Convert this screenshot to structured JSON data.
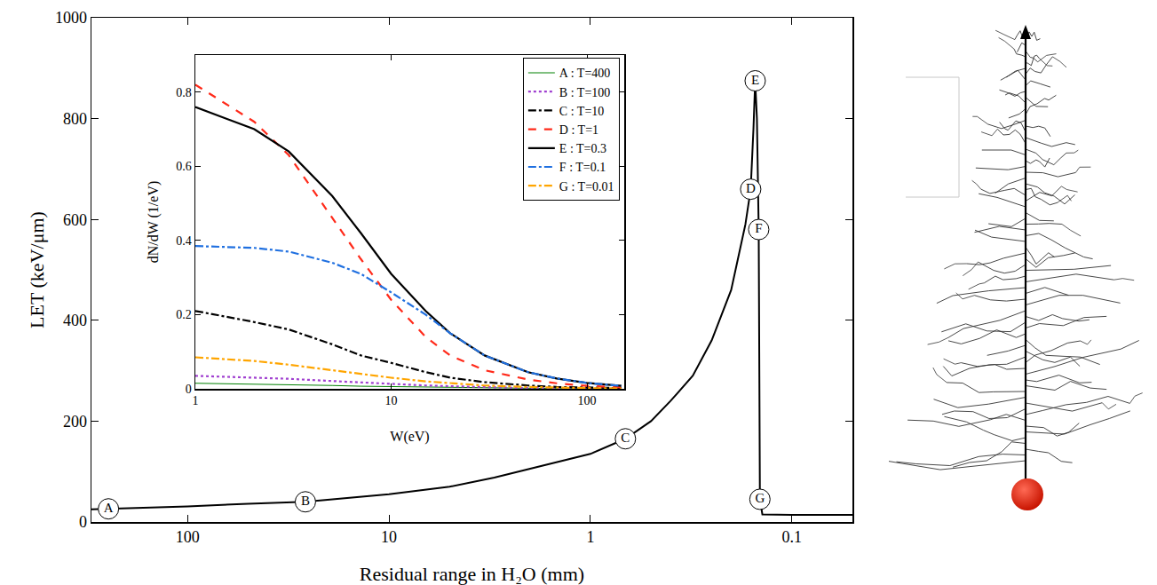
{
  "chart_data": [
    {
      "type": "line",
      "xlabel": "Residual range in H₂O (mm)",
      "ylabel": "LET (keV/μm)",
      "log": "x",
      "grid": false,
      "xlim": [
        300,
        0.05
      ],
      "xticks": [
        100,
        10,
        1,
        0.1
      ],
      "ylim": [
        0,
        1000
      ],
      "yticks": [
        0,
        200,
        400,
        600,
        800,
        1000
      ],
      "x": [
        300,
        247,
        150,
        100,
        50,
        26,
        10,
        5,
        3,
        2,
        1,
        0.67,
        0.5,
        0.4,
        0.31,
        0.25,
        0.2,
        0.17,
        0.16,
        0.155,
        0.152,
        0.149,
        0.146,
        0.144,
        0.14,
        0.1,
        0.05
      ],
      "series": [
        {
          "color": "#000000",
          "line_style": "solid",
          "values": [
            25,
            26,
            29,
            31,
            36,
            40,
            55,
            70,
            88,
            105,
            135,
            165,
            200,
            240,
            290,
            360,
            460,
            590,
            660,
            780,
            875,
            800,
            580,
            45,
            15,
            14,
            14
          ]
        }
      ],
      "annotations": [
        {
          "text": "A",
          "x": 247,
          "y": 26
        },
        {
          "text": "B",
          "x": 26,
          "y": 40
        },
        {
          "text": "C",
          "x": 0.67,
          "y": 165
        },
        {
          "text": "D",
          "x": 0.16,
          "y": 660
        },
        {
          "text": "E",
          "x": 0.152,
          "y": 875
        },
        {
          "text": "F",
          "x": 0.146,
          "y": 580
        },
        {
          "text": "G",
          "x": 0.144,
          "y": 45
        }
      ]
    },
    {
      "type": "line",
      "xlabel": "W(eV)",
      "ylabel": "dN/dW (1/eV)",
      "log": "x",
      "grid": false,
      "legend": "top right",
      "xlim": [
        1,
        155
      ],
      "xticks": [
        1,
        10,
        100
      ],
      "ylim": [
        0,
        0.9
      ],
      "yticks": [
        0,
        0.2,
        0.4,
        0.6,
        0.8
      ],
      "x": [
        1,
        2,
        3,
        5,
        7,
        10,
        15,
        20,
        30,
        50,
        70,
        100,
        150
      ],
      "series": [
        {
          "name": "A : T=400",
          "color": "#008000",
          "line_style": "solid",
          "values": [
            0.015,
            0.013,
            0.012,
            0.009,
            0.007,
            0.006,
            0.004,
            0.003,
            0.002,
            0.001,
            0.0007,
            0.0005,
            0.0002
          ]
        },
        {
          "name": "B : T=100",
          "color": "#a040d0",
          "line_style": "dot",
          "values": [
            0.035,
            0.03,
            0.027,
            0.021,
            0.017,
            0.013,
            0.009,
            0.007,
            0.004,
            0.002,
            0.0015,
            0.001,
            0.0005
          ]
        },
        {
          "name": "C : T=10",
          "color": "#000000",
          "line_style": "dashdot",
          "values": [
            0.21,
            0.18,
            0.16,
            0.12,
            0.09,
            0.07,
            0.045,
            0.03,
            0.018,
            0.009,
            0.005,
            0.003,
            0.002
          ]
        },
        {
          "name": "D : T=1",
          "color": "#ff2a1a",
          "line_style": "dash",
          "values": [
            0.82,
            0.72,
            0.63,
            0.46,
            0.35,
            0.24,
            0.14,
            0.09,
            0.05,
            0.025,
            0.015,
            0.008,
            0.004
          ]
        },
        {
          "name": "E : T=0.3",
          "color": "#000000",
          "line_style": "solid",
          "values": [
            0.76,
            0.7,
            0.64,
            0.52,
            0.42,
            0.31,
            0.21,
            0.15,
            0.09,
            0.045,
            0.028,
            0.016,
            0.008
          ]
        },
        {
          "name": "F : T=0.1",
          "color": "#2070e0",
          "line_style": "dashdot",
          "values": [
            0.385,
            0.38,
            0.37,
            0.34,
            0.31,
            0.26,
            0.2,
            0.15,
            0.09,
            0.045,
            0.028,
            0.016,
            0.008
          ]
        },
        {
          "name": "G : T=0.01",
          "color": "#ffa500",
          "line_style": "dashdot",
          "values": [
            0.085,
            0.075,
            0.065,
            0.05,
            0.04,
            0.03,
            0.02,
            0.015,
            0.009,
            0.005,
            0.003,
            0.002,
            0.001
          ]
        }
      ]
    }
  ]
}
